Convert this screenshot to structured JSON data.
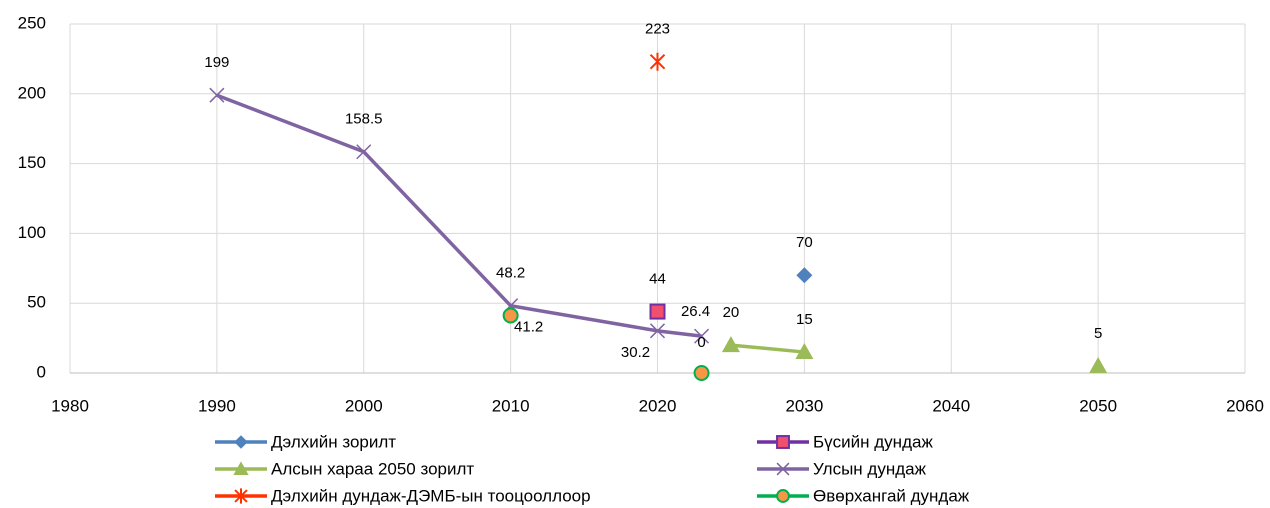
{
  "chart_data": {
    "type": "line",
    "xlim": [
      1980,
      2060
    ],
    "xticks": [
      1980,
      1990,
      2000,
      2010,
      2020,
      2030,
      2040,
      2050,
      2060
    ],
    "ylim": [
      0,
      250
    ],
    "yticks": [
      0,
      50,
      100,
      150,
      200,
      250
    ],
    "grid": true,
    "legend": "bottom",
    "series": [
      {
        "name": "Дэлхийн зорилт",
        "color": "#4f81bd",
        "marker": "diamond",
        "x": [
          2030
        ],
        "values": [
          70
        ]
      },
      {
        "name": "Бүсийн дундаж",
        "color": "#7030a0",
        "marker": "square",
        "marker_color": "#f0506e",
        "x": [
          2020
        ],
        "values": [
          44
        ]
      },
      {
        "name": "Алсын хараа 2050 зорилт",
        "color": "#9bbb59",
        "marker": "triangle",
        "x": [
          2025,
          2030,
          null,
          2050
        ],
        "values": [
          20,
          15,
          null,
          5
        ]
      },
      {
        "name": "Улсын дундаж",
        "color": "#8064a2",
        "marker": "x",
        "x": [
          1990,
          2000,
          2010,
          2020,
          2023
        ],
        "values": [
          199,
          158.5,
          48.2,
          30.2,
          26.4
        ]
      },
      {
        "name": "Дэлхийн дундаж-ДЭМБ-ын тооцооллоор",
        "color": "#ff3300",
        "marker": "star",
        "x": [
          2020
        ],
        "values": [
          223
        ]
      },
      {
        "name": "Өвөрхангай дундаж",
        "color": "#00b050",
        "marker": "circle",
        "marker_color": "#f79646",
        "line": false,
        "x": [
          2010,
          2023
        ],
        "values": [
          41.2,
          0
        ]
      }
    ]
  }
}
